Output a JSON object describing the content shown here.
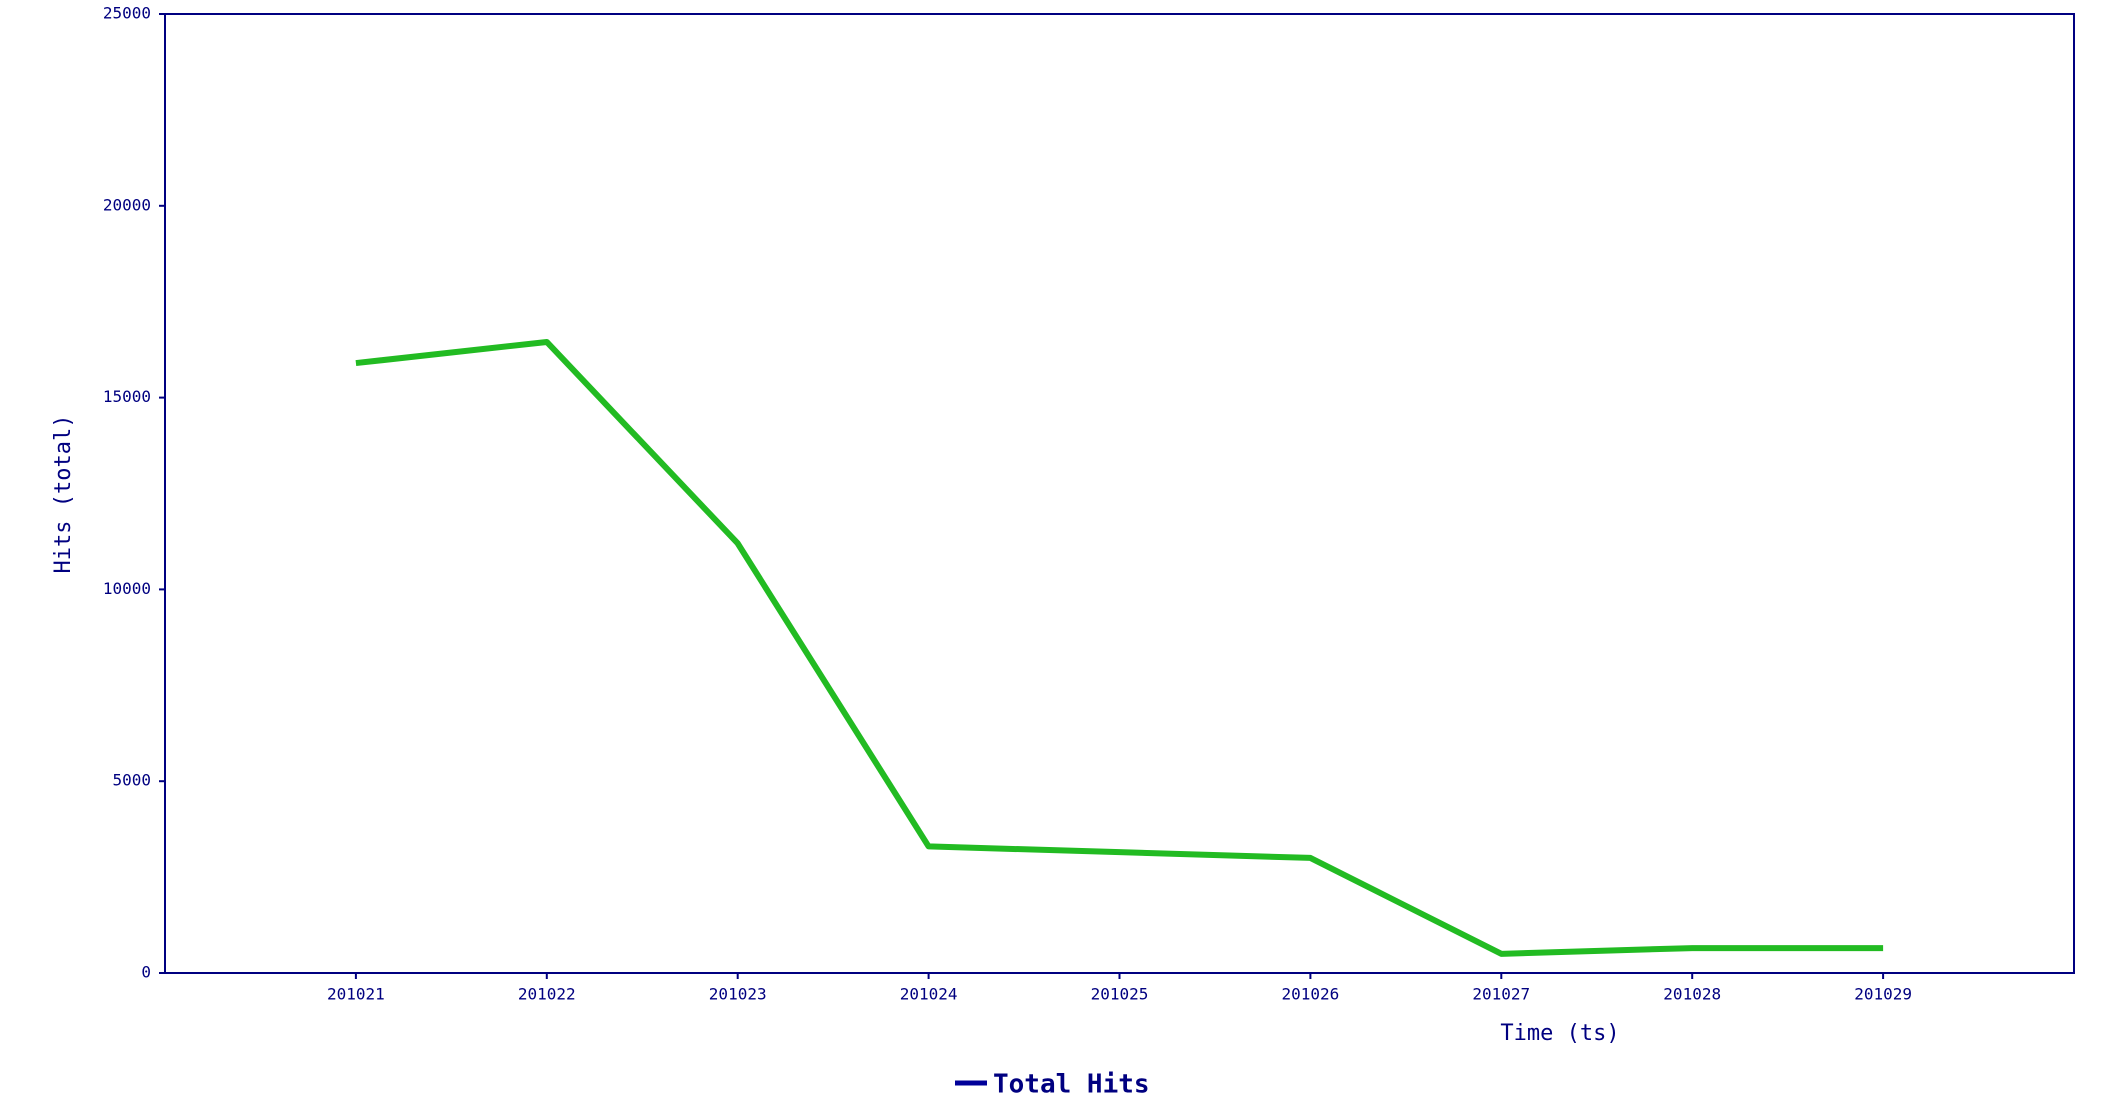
{
  "chart_data": {
    "type": "line",
    "y_label": "Hits (total)",
    "x_label": "Time (ts)",
    "categories": [
      "201021",
      "201022",
      "201023",
      "201024",
      "201025",
      "201026",
      "201027",
      "201028",
      "201029"
    ],
    "series": [
      {
        "name": "Total Hits",
        "color": "#22bb22",
        "legend_color": "#000099",
        "values": [
          15900,
          16450,
          11200,
          3300,
          3150,
          3000,
          500,
          650,
          650
        ]
      }
    ],
    "ylim": [
      0,
      25000
    ],
    "yticks": [
      0,
      5000,
      10000,
      15000,
      20000,
      25000
    ],
    "grid": false
  }
}
